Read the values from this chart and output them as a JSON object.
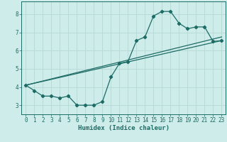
{
  "xlabel": "Humidex (Indice chaleur)",
  "background_color": "#ceecea",
  "grid_color": "#b8dbd8",
  "line_color": "#1d6b65",
  "xlim": [
    -0.5,
    23.5
  ],
  "ylim": [
    2.5,
    8.7
  ],
  "xticks": [
    0,
    1,
    2,
    3,
    4,
    5,
    6,
    7,
    8,
    9,
    10,
    11,
    12,
    13,
    14,
    15,
    16,
    17,
    18,
    19,
    20,
    21,
    22,
    23
  ],
  "yticks": [
    3,
    4,
    5,
    6,
    7,
    8
  ],
  "line1_x": [
    0,
    1,
    2,
    3,
    4,
    5,
    6,
    7,
    8,
    9,
    10,
    11,
    12,
    13,
    14,
    15,
    16,
    17,
    18,
    19,
    20,
    21,
    22,
    23
  ],
  "line1_y": [
    4.1,
    3.8,
    3.5,
    3.5,
    3.4,
    3.5,
    3.0,
    3.0,
    3.0,
    3.2,
    4.55,
    5.3,
    5.4,
    6.55,
    6.75,
    7.9,
    8.15,
    8.15,
    7.5,
    7.2,
    7.3,
    7.3,
    6.5,
    6.55
  ],
  "line2_x": [
    0,
    23
  ],
  "line2_y": [
    4.1,
    6.55
  ],
  "line3_x": [
    0,
    23
  ],
  "line3_y": [
    4.1,
    6.75
  ]
}
